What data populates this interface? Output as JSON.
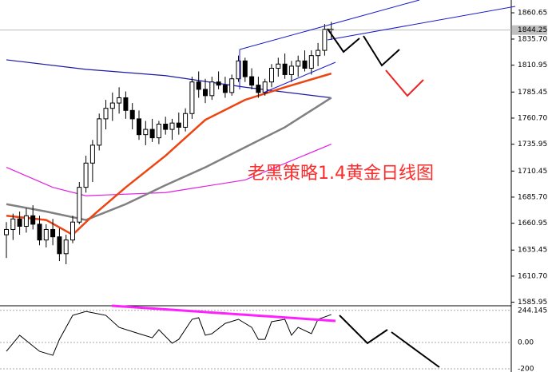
{
  "chart_data": {
    "type": "candlestick",
    "annotation": "老黑策略1.4黄金日线图",
    "candles": [
      [
        1650,
        1662,
        1628,
        1655
      ],
      [
        1655,
        1670,
        1645,
        1665
      ],
      [
        1665,
        1672,
        1650,
        1658
      ],
      [
        1658,
        1675,
        1652,
        1668
      ],
      [
        1668,
        1678,
        1655,
        1660
      ],
      [
        1660,
        1668,
        1640,
        1645
      ],
      [
        1645,
        1660,
        1638,
        1655
      ],
      [
        1655,
        1665,
        1640,
        1648
      ],
      [
        1648,
        1656,
        1625,
        1632
      ],
      [
        1632,
        1650,
        1622,
        1645
      ],
      [
        1645,
        1668,
        1642,
        1662
      ],
      [
        1662,
        1700,
        1660,
        1695
      ],
      [
        1695,
        1725,
        1690,
        1718
      ],
      [
        1718,
        1740,
        1700,
        1735
      ],
      [
        1735,
        1765,
        1730,
        1760
      ],
      [
        1760,
        1778,
        1750,
        1770
      ],
      [
        1770,
        1785,
        1758,
        1775
      ],
      [
        1775,
        1790,
        1765,
        1780
      ],
      [
        1780,
        1786,
        1760,
        1768
      ],
      [
        1768,
        1775,
        1750,
        1760
      ],
      [
        1760,
        1768,
        1740,
        1745
      ],
      [
        1745,
        1758,
        1735,
        1750
      ],
      [
        1750,
        1760,
        1738,
        1742
      ],
      [
        1742,
        1758,
        1736,
        1755
      ],
      [
        1755,
        1762,
        1745,
        1750
      ],
      [
        1750,
        1760,
        1740,
        1756
      ],
      [
        1756,
        1766,
        1745,
        1752
      ],
      [
        1752,
        1770,
        1748,
        1765
      ],
      [
        1765,
        1800,
        1760,
        1795
      ],
      [
        1795,
        1805,
        1780,
        1788
      ],
      [
        1788,
        1798,
        1775,
        1782
      ],
      [
        1782,
        1800,
        1778,
        1795
      ],
      [
        1795,
        1805,
        1788,
        1792
      ],
      [
        1792,
        1800,
        1780,
        1785
      ],
      [
        1785,
        1802,
        1782,
        1798
      ],
      [
        1798,
        1820,
        1795,
        1815
      ],
      [
        1815,
        1818,
        1795,
        1800
      ],
      [
        1800,
        1808,
        1788,
        1792
      ],
      [
        1792,
        1800,
        1780,
        1785
      ],
      [
        1785,
        1798,
        1782,
        1795
      ],
      [
        1795,
        1812,
        1790,
        1808
      ],
      [
        1808,
        1818,
        1800,
        1812
      ],
      [
        1812,
        1822,
        1798,
        1802
      ],
      [
        1802,
        1815,
        1795,
        1810
      ],
      [
        1810,
        1820,
        1800,
        1815
      ],
      [
        1815,
        1825,
        1805,
        1808
      ],
      [
        1808,
        1825,
        1802,
        1820
      ],
      [
        1820,
        1832,
        1810,
        1825
      ],
      [
        1825,
        1850,
        1820,
        1845
      ],
      [
        1845,
        1852,
        1835,
        1844.25
      ]
    ],
    "lines": [
      {
        "color": "#1a1aa6",
        "x": [
          0,
          12,
          24,
          36,
          49
        ],
        "values": [
          1816,
          1807,
          1801,
          1790,
          1780
        ]
      },
      {
        "color": "#e020e0",
        "x": [
          0,
          7,
          12,
          24,
          36,
          49
        ],
        "values": [
          1714,
          1695,
          1687,
          1690,
          1702,
          1736
        ]
      },
      {
        "color": "#808080",
        "x": [
          0,
          6,
          12,
          18,
          24,
          30,
          36,
          42,
          49
        ],
        "values": [
          1679,
          1672,
          1664,
          1679,
          1697,
          1714,
          1733,
          1752,
          1780
        ]
      },
      {
        "color": "#ee4411",
        "x": [
          0,
          6,
          10,
          13,
          18,
          24,
          30,
          36,
          42,
          49
        ],
        "values": [
          1668,
          1664,
          1650,
          1668,
          1695,
          1725,
          1759,
          1778,
          1790,
          1803
        ]
      }
    ],
    "ylim": [
      1582.6,
      1872.8
    ],
    "yticks": [
      1860.65,
      {
        "value": 1835.7,
        "label": "1835.70"
      },
      1810.95,
      1785.45,
      {
        "value": 1760.7,
        "label": "1760.70"
      },
      1735.95,
      1710.45,
      {
        "value": 1685.7,
        "label": "1685.70"
      },
      1660.95,
      1635.45,
      {
        "value": 1610.7,
        "label": "1610.70"
      },
      1585.95
    ],
    "indicator": {
      "x": [
        0,
        2,
        5,
        7,
        8,
        10,
        12,
        15,
        17,
        20,
        22,
        23,
        25,
        26,
        28,
        29,
        30,
        31,
        33,
        35,
        37,
        38,
        39,
        40,
        42,
        43,
        44,
        46,
        47,
        49
      ],
      "values": [
        -67,
        55,
        -67,
        -97,
        24,
        206,
        236,
        206,
        115,
        67,
        36,
        97,
        -6,
        24,
        176,
        188,
        55,
        67,
        145,
        176,
        115,
        24,
        24,
        158,
        176,
        55,
        115,
        67,
        176,
        212
      ],
      "ylim": [
        -224,
        273
      ],
      "yticks": [
        244.1452,
        {
          "value": 0,
          "label": "0.00"
        },
        -200
      ]
    }
  }
}
